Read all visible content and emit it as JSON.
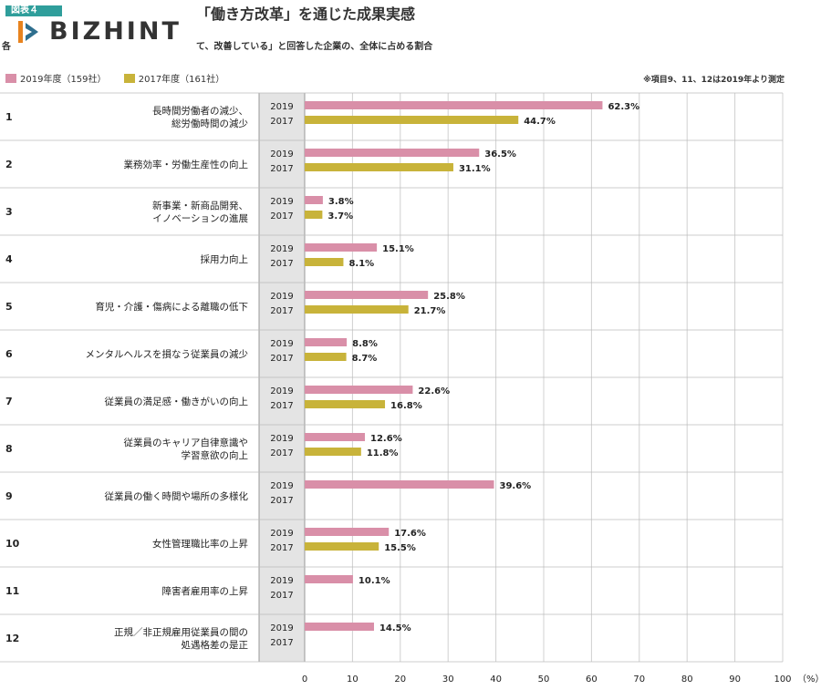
{
  "header": {
    "figure_badge": "図表４",
    "logo_text": "BIZHINT",
    "title": "「働き方改革」を通じた成果実感",
    "subtitle_prefix": "各",
    "subtitle": "て、改善している」と回答した企業の、全体に占める割合",
    "note": "※項目9、11、12は2019年より測定"
  },
  "colors": {
    "series_2019": "#d98fa8",
    "series_2017": "#c8b33a",
    "band": "#e4e4e4",
    "grid": "#d0d0d0"
  },
  "chart_data": {
    "type": "bar",
    "orientation": "horizontal",
    "unit_label": "（%）",
    "xlim": [
      0,
      100
    ],
    "x_ticks": [
      "0",
      "10",
      "20",
      "30",
      "40",
      "50",
      "60",
      "70",
      "80",
      "90",
      "100"
    ],
    "legend": [
      {
        "name": "2019年度（159社）",
        "color": "#d98fa8"
      },
      {
        "name": "2017年度（161社）",
        "color": "#c8b33a"
      }
    ],
    "legend_position": "top-left",
    "grid": true,
    "categories": [
      {
        "num": "1",
        "lines": [
          "長時間労働者の減少、",
          "総労働時間の減少"
        ]
      },
      {
        "num": "2",
        "lines": [
          "業務効率・労働生産性の向上"
        ]
      },
      {
        "num": "3",
        "lines": [
          "新事業・新商品開発、",
          "イノベーションの進展"
        ]
      },
      {
        "num": "4",
        "lines": [
          "採用力向上"
        ]
      },
      {
        "num": "5",
        "lines": [
          "育児・介護・傷病による離職の低下"
        ]
      },
      {
        "num": "6",
        "lines": [
          "メンタルヘルスを損なう従業員の減少"
        ]
      },
      {
        "num": "7",
        "lines": [
          "従業員の満足感・働きがいの向上"
        ]
      },
      {
        "num": "8",
        "lines": [
          "従業員のキャリア自律意識や",
          "学習意欲の向上"
        ]
      },
      {
        "num": "9",
        "lines": [
          "従業員の働く時間や場所の多様化"
        ]
      },
      {
        "num": "10",
        "lines": [
          "女性管理職比率の上昇"
        ]
      },
      {
        "num": "11",
        "lines": [
          "障害者雇用率の上昇"
        ]
      },
      {
        "num": "12",
        "lines": [
          "正規／非正規雇用従業員の間の",
          "処遇格差の是正"
        ]
      }
    ],
    "series": [
      {
        "year": "2019",
        "values": [
          62.3,
          36.5,
          3.8,
          15.1,
          25.8,
          8.8,
          22.6,
          12.6,
          39.6,
          17.6,
          10.1,
          14.5
        ]
      },
      {
        "year": "2017",
        "values": [
          44.7,
          31.1,
          3.7,
          8.1,
          21.7,
          8.7,
          16.8,
          11.8,
          null,
          15.5,
          null,
          null
        ]
      }
    ]
  }
}
